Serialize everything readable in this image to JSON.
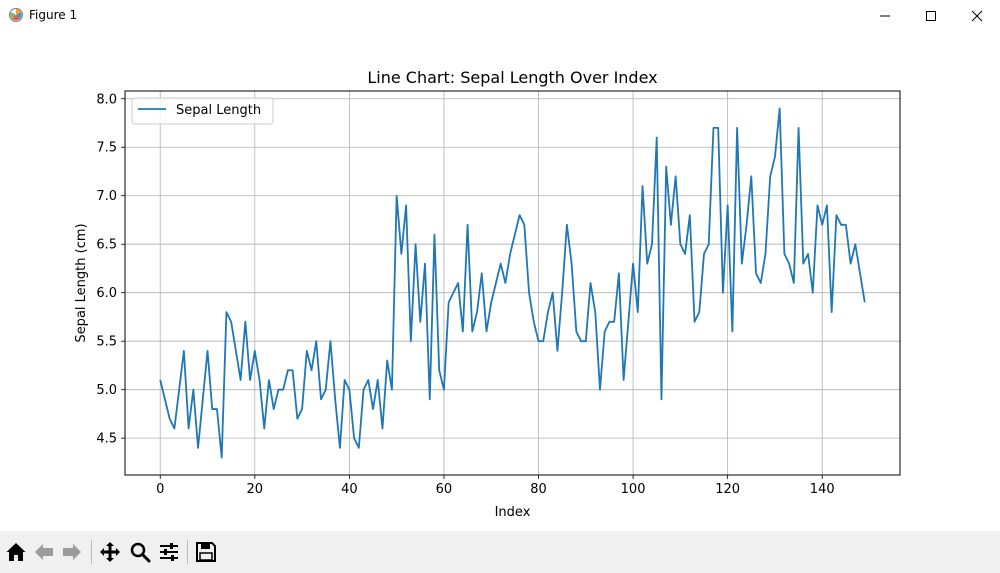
{
  "window": {
    "title": "Figure 1"
  },
  "toolbar": {
    "buttons": [
      "home-icon",
      "back-icon",
      "forward-icon",
      "pan-icon",
      "zoom-icon",
      "configure-subplots-icon",
      "save-icon"
    ]
  },
  "colors": {
    "line": "#1f77b4",
    "grid": "#b0b0b0",
    "toolbar_bg": "#f0f0f0"
  },
  "chart_data": {
    "type": "line",
    "title": "Line Chart: Sepal Length Over Index",
    "xlabel": "Index",
    "ylabel": "Sepal Length (cm)",
    "xlim": [
      -7.45,
      156.45
    ],
    "ylim": [
      4.12,
      8.08
    ],
    "xticks": [
      0,
      20,
      40,
      60,
      80,
      100,
      120,
      140
    ],
    "yticks": [
      4.5,
      5.0,
      5.5,
      6.0,
      6.5,
      7.0,
      7.5,
      8.0
    ],
    "xtick_labels": [
      "0",
      "20",
      "40",
      "60",
      "80",
      "100",
      "120",
      "140"
    ],
    "ytick_labels": [
      "4.5",
      "5.0",
      "5.5",
      "6.0",
      "6.5",
      "7.0",
      "7.5",
      "8.0"
    ],
    "grid": true,
    "legend_position": "upper-left",
    "series": [
      {
        "name": "Sepal Length",
        "color": "#1f77b4",
        "values": [
          5.1,
          4.9,
          4.7,
          4.6,
          5.0,
          5.4,
          4.6,
          5.0,
          4.4,
          4.9,
          5.4,
          4.8,
          4.8,
          4.3,
          5.8,
          5.7,
          5.4,
          5.1,
          5.7,
          5.1,
          5.4,
          5.1,
          4.6,
          5.1,
          4.8,
          5.0,
          5.0,
          5.2,
          5.2,
          4.7,
          4.8,
          5.4,
          5.2,
          5.5,
          4.9,
          5.0,
          5.5,
          4.9,
          4.4,
          5.1,
          5.0,
          4.5,
          4.4,
          5.0,
          5.1,
          4.8,
          5.1,
          4.6,
          5.3,
          5.0,
          7.0,
          6.4,
          6.9,
          5.5,
          6.5,
          5.7,
          6.3,
          4.9,
          6.6,
          5.2,
          5.0,
          5.9,
          6.0,
          6.1,
          5.6,
          6.7,
          5.6,
          5.8,
          6.2,
          5.6,
          5.9,
          6.1,
          6.3,
          6.1,
          6.4,
          6.6,
          6.8,
          6.7,
          6.0,
          5.7,
          5.5,
          5.5,
          5.8,
          6.0,
          5.4,
          6.0,
          6.7,
          6.3,
          5.6,
          5.5,
          5.5,
          6.1,
          5.8,
          5.0,
          5.6,
          5.7,
          5.7,
          6.2,
          5.1,
          5.7,
          6.3,
          5.8,
          7.1,
          6.3,
          6.5,
          7.6,
          4.9,
          7.3,
          6.7,
          7.2,
          6.5,
          6.4,
          6.8,
          5.7,
          5.8,
          6.4,
          6.5,
          7.7,
          7.7,
          6.0,
          6.9,
          5.6,
          7.7,
          6.3,
          6.7,
          7.2,
          6.2,
          6.1,
          6.4,
          7.2,
          7.4,
          7.9,
          6.4,
          6.3,
          6.1,
          7.7,
          6.3,
          6.4,
          6.0,
          6.9,
          6.7,
          6.9,
          5.8,
          6.8,
          6.7,
          6.7,
          6.3,
          6.5,
          6.2,
          5.9
        ]
      }
    ]
  }
}
